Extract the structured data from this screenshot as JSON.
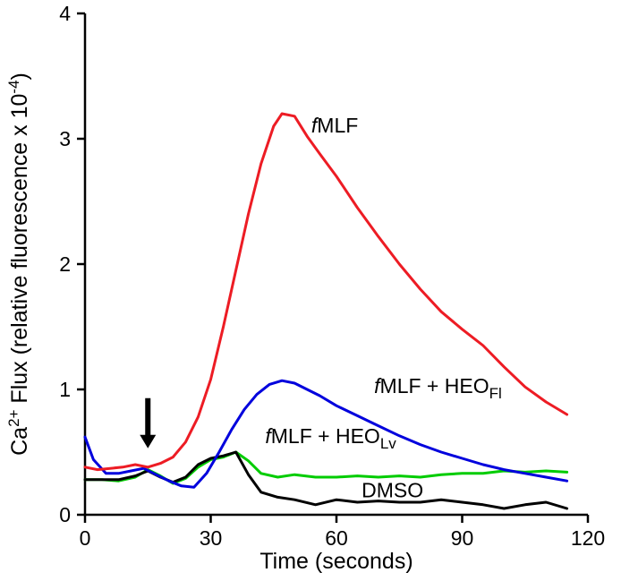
{
  "chart_data": {
    "type": "line",
    "title": "",
    "xlabel": "Time (seconds)",
    "ylabel_parts": [
      {
        "t": "Ca",
        "style": "normal"
      },
      {
        "t": "2+",
        "style": "sup"
      },
      {
        "t": " Flux  (relative fluorescence x 10",
        "style": "normal"
      },
      {
        "t": "-4",
        "style": "sup"
      },
      {
        "t": ")",
        "style": "normal"
      }
    ],
    "xlim": [
      0,
      120
    ],
    "ylim": [
      0,
      4
    ],
    "xticks": [
      "0",
      "30",
      "60",
      "90",
      "120"
    ],
    "yticks": [
      "0",
      "1",
      "2",
      "3",
      "4"
    ],
    "grid": false,
    "legend": "inline-labels",
    "axis_color": "#000000",
    "series": [
      {
        "name": "fMLF + HEOLv",
        "color": "#00cc00",
        "x": [
          0,
          4,
          8,
          12,
          15,
          18,
          21,
          24,
          27,
          30,
          33,
          36,
          39,
          42,
          46,
          50,
          55,
          60,
          65,
          70,
          75,
          80,
          85,
          90,
          95,
          100,
          105,
          110,
          115
        ],
        "y": [
          0.28,
          0.28,
          0.27,
          0.3,
          0.36,
          0.31,
          0.25,
          0.29,
          0.38,
          0.44,
          0.46,
          0.5,
          0.43,
          0.33,
          0.3,
          0.32,
          0.3,
          0.3,
          0.31,
          0.3,
          0.31,
          0.3,
          0.32,
          0.33,
          0.33,
          0.35,
          0.34,
          0.35,
          0.34
        ]
      },
      {
        "name": "DMSO",
        "color": "#000000",
        "x": [
          0,
          4,
          8,
          12,
          15,
          18,
          21,
          24,
          27,
          30,
          33,
          36,
          39,
          42,
          46,
          50,
          55,
          60,
          65,
          70,
          75,
          80,
          85,
          90,
          95,
          100,
          105,
          110,
          115
        ],
        "y": [
          0.28,
          0.28,
          0.28,
          0.31,
          0.35,
          0.3,
          0.26,
          0.3,
          0.4,
          0.45,
          0.47,
          0.5,
          0.32,
          0.18,
          0.14,
          0.12,
          0.08,
          0.12,
          0.1,
          0.11,
          0.1,
          0.1,
          0.12,
          0.1,
          0.08,
          0.05,
          0.08,
          0.1,
          0.05
        ]
      },
      {
        "name": "fMLF + HEOFl",
        "color": "#0000dd",
        "x": [
          0,
          2,
          5,
          8,
          11,
          14,
          17,
          20,
          23,
          26,
          29,
          32,
          35,
          38,
          41,
          44,
          47,
          50,
          53,
          56,
          60,
          65,
          70,
          75,
          80,
          85,
          90,
          95,
          100,
          105,
          110,
          115
        ],
        "y": [
          0.62,
          0.44,
          0.33,
          0.33,
          0.35,
          0.37,
          0.32,
          0.27,
          0.23,
          0.22,
          0.33,
          0.5,
          0.68,
          0.84,
          0.96,
          1.04,
          1.07,
          1.05,
          1.0,
          0.95,
          0.87,
          0.79,
          0.71,
          0.63,
          0.56,
          0.5,
          0.45,
          0.4,
          0.36,
          0.33,
          0.3,
          0.27
        ]
      },
      {
        "name": "fMLF",
        "color": "#ed1c24",
        "x": [
          0,
          3,
          6,
          9,
          12,
          15,
          18,
          21,
          24,
          27,
          30,
          33,
          36,
          39,
          42,
          45,
          47,
          50,
          53,
          56,
          60,
          65,
          70,
          75,
          80,
          85,
          90,
          95,
          100,
          105,
          110,
          115
        ],
        "y": [
          0.38,
          0.36,
          0.37,
          0.38,
          0.4,
          0.38,
          0.41,
          0.46,
          0.58,
          0.78,
          1.08,
          1.5,
          1.95,
          2.4,
          2.8,
          3.1,
          3.2,
          3.18,
          3.02,
          2.88,
          2.7,
          2.45,
          2.22,
          2.0,
          1.8,
          1.62,
          1.48,
          1.35,
          1.18,
          1.02,
          0.9,
          0.8
        ]
      }
    ],
    "annotations": {
      "stimulus_arrow": {
        "x": 15,
        "y_tail": 0.93,
        "y_head": 0.53
      },
      "labels": [
        {
          "name": "label-fMLF",
          "x": 54,
          "y": 3.05,
          "parts": [
            {
              "t": "f",
              "style": "italic"
            },
            {
              "t": "MLF",
              "style": "normal"
            }
          ]
        },
        {
          "name": "label-fMLF-HEOFl",
          "x": 69,
          "y": 0.97,
          "parts": [
            {
              "t": "f",
              "style": "italic"
            },
            {
              "t": "MLF + HEO",
              "style": "normal"
            },
            {
              "t": "Fl",
              "style": "sub"
            }
          ]
        },
        {
          "name": "label-fMLF-HEOLv",
          "x": 43,
          "y": 0.57,
          "parts": [
            {
              "t": "f",
              "style": "italic"
            },
            {
              "t": "MLF + HEO",
              "style": "normal"
            },
            {
              "t": "Lv",
              "style": "sub"
            }
          ]
        },
        {
          "name": "label-DMSO",
          "x": 66,
          "y": 0.14,
          "parts": [
            {
              "t": "DMSO",
              "style": "normal"
            }
          ]
        }
      ]
    }
  }
}
